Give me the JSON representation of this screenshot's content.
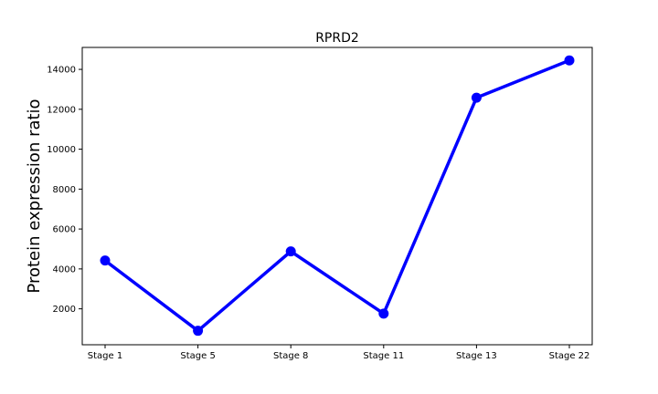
{
  "chart_data": {
    "type": "line",
    "title": "RPRD2",
    "xlabel": "",
    "ylabel": "Protein expression ratio",
    "categories": [
      "Stage 1",
      "Stage 5",
      "Stage 8",
      "Stage 11",
      "Stage 13",
      "Stage 22"
    ],
    "series": [
      {
        "values": [
          4420,
          900,
          4880,
          1760,
          12580,
          14450
        ]
      }
    ],
    "ylim": [
      200,
      15100
    ],
    "yticks": [
      2000,
      4000,
      6000,
      8000,
      10000,
      12000,
      14000
    ],
    "ytick_labels": [
      "2000",
      "4000",
      "6000",
      "8000",
      "10000",
      "12000",
      "14000"
    ],
    "grid": false,
    "legend": false,
    "line_color": "#0000ff"
  }
}
